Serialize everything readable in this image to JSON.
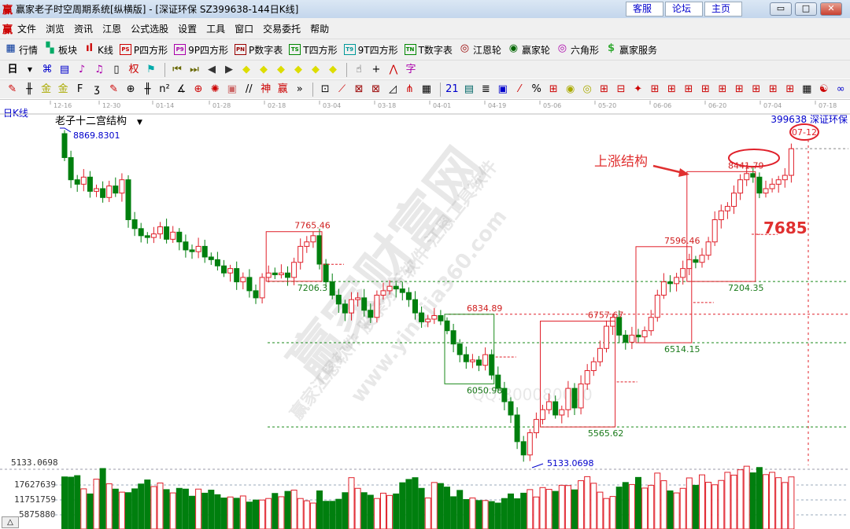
{
  "window": {
    "logo": "赢",
    "title": "赢家老子时空周期系统[纵横版] - [深证环保   SZ399638-144日K线]",
    "links": [
      "客服",
      "论坛",
      "主页"
    ],
    "controls": [
      "minimize",
      "maximize",
      "close"
    ]
  },
  "menu": {
    "logo": "赢",
    "items": [
      "文件",
      "浏览",
      "资讯",
      "江恩",
      "公式选股",
      "设置",
      "工具",
      "窗口",
      "交易委托",
      "帮助"
    ]
  },
  "toolbar1": [
    {
      "icon": "quote-grid-icon",
      "label": "行情",
      "color": "#003399",
      "badge": "▦"
    },
    {
      "icon": "sector-blocks-icon",
      "label": "板块",
      "color": "#0a6",
      "badge": "▚"
    },
    {
      "icon": "kline-icon",
      "label": "K线",
      "color": "#c00",
      "badge": "ıl"
    },
    {
      "icon": "ps-icon",
      "label": "P四方形",
      "color": "#c00",
      "badge": "PS"
    },
    {
      "icon": "p9-icon",
      "label": "9P四方形",
      "color": "#a0a",
      "badge": "P9"
    },
    {
      "icon": "pn-icon",
      "label": "P数字表",
      "color": "#900",
      "badge": "PN"
    },
    {
      "icon": "ts-icon",
      "label": "T四方形",
      "color": "#080",
      "badge": "TS"
    },
    {
      "icon": "t9-icon",
      "label": "9T四方形",
      "color": "#099",
      "badge": "T9"
    },
    {
      "icon": "tn-icon",
      "label": "T数字表",
      "color": "#080",
      "badge": "TN"
    },
    {
      "icon": "gann-wheel-icon",
      "label": "江恩轮",
      "color": "#900",
      "badge": "◎"
    },
    {
      "icon": "yingjia-wheel-icon",
      "label": "赢家轮",
      "color": "#060",
      "badge": "◉"
    },
    {
      "icon": "hexagon-icon",
      "label": "六角形",
      "color": "#a0a",
      "badge": "◎"
    },
    {
      "icon": "dollar-icon",
      "label": "赢家服务",
      "color": "#3a3",
      "badge": "$"
    }
  ],
  "toolbar2": {
    "period": "日",
    "icons": [
      {
        "name": "connect-icon",
        "g": "⌘",
        "c": "#00c"
      },
      {
        "name": "notes-icon",
        "g": "▤",
        "c": "#00c"
      },
      {
        "name": "chart3-icon",
        "g": "♪",
        "c": "#a0a"
      },
      {
        "name": "chart9-icon",
        "g": "♫",
        "c": "#a0a"
      },
      {
        "name": "candle-type-icon",
        "g": "▯",
        "c": "#000"
      },
      {
        "name": "weight-icon",
        "g": "权",
        "c": "#c00"
      },
      {
        "name": "flag-icon",
        "g": "⚑",
        "c": "#0aa"
      },
      {
        "name": "first-icon",
        "g": "⏮",
        "c": "#660"
      },
      {
        "name": "last-icon",
        "g": "⏭",
        "c": "#660"
      },
      {
        "name": "prev-icon",
        "g": "◀",
        "c": "#333"
      },
      {
        "name": "next-icon",
        "g": "▶",
        "c": "#333"
      },
      {
        "name": "shift-left-icon",
        "g": "◆",
        "c": "#dd0"
      },
      {
        "name": "shift-right-icon",
        "g": "◆",
        "c": "#dd0"
      },
      {
        "name": "expand-icon",
        "g": "◆",
        "c": "#dd0"
      },
      {
        "name": "shrink-icon",
        "g": "◆",
        "c": "#dd0"
      },
      {
        "name": "zoom-in-icon",
        "g": "◆",
        "c": "#dd0"
      },
      {
        "name": "zoom-out-icon",
        "g": "◆",
        "c": "#dd0"
      },
      {
        "name": "hand-icon",
        "g": "☝",
        "c": "#333"
      },
      {
        "name": "crosshair-icon",
        "g": "+",
        "c": "#000"
      },
      {
        "name": "line-icon",
        "g": "⋀",
        "c": "#c00"
      },
      {
        "name": "text-icon",
        "g": "字",
        "c": "#a0a"
      }
    ]
  },
  "toolbar3": {
    "icons": [
      {
        "name": "pen-icon",
        "g": "✎",
        "c": "#c00"
      },
      {
        "name": "grid1-icon",
        "g": "╫",
        "c": "#000"
      },
      {
        "name": "gold-icon",
        "g": "金",
        "c": "#aa0"
      },
      {
        "name": "gold2-icon",
        "g": "金",
        "c": "#aa0"
      },
      {
        "name": "fib-icon",
        "g": "F",
        "c": "#000"
      },
      {
        "name": "spiral-icon",
        "g": "ʒ",
        "c": "#000"
      },
      {
        "name": "rocket-icon",
        "g": "✎",
        "c": "#c00"
      },
      {
        "name": "circle-grid-icon",
        "g": "⊕",
        "c": "#000"
      },
      {
        "name": "grid2-icon",
        "g": "╫",
        "c": "#000"
      },
      {
        "name": "n2-icon",
        "g": "n²",
        "c": "#000"
      },
      {
        "name": "angle-icon",
        "g": "∡",
        "c": "#000"
      },
      {
        "name": "target-icon",
        "g": "⊕",
        "c": "#c00"
      },
      {
        "name": "radar-icon",
        "g": "✺",
        "c": "#c00"
      },
      {
        "name": "square-spiral-icon",
        "g": "▣",
        "c": "#c66"
      },
      {
        "name": "parallel-icon",
        "g": "//",
        "c": "#000"
      },
      {
        "name": "shen-icon",
        "g": "神",
        "c": "#c00"
      },
      {
        "name": "ying-icon",
        "g": "赢",
        "c": "#c00"
      },
      {
        "name": "more-icon",
        "g": "»",
        "c": "#000"
      },
      {
        "name": "box-icon",
        "g": "⊡",
        "c": "#000"
      },
      {
        "name": "fan-icon",
        "g": "⟋",
        "c": "#c00"
      },
      {
        "name": "box-fan-icon",
        "g": "⊠",
        "c": "#900"
      },
      {
        "name": "box-fan2-icon",
        "g": "⊠",
        "c": "#900"
      },
      {
        "name": "cycle-icon",
        "g": "◿",
        "c": "#000"
      },
      {
        "name": "pitch-icon",
        "g": "⋔",
        "c": "#c00"
      },
      {
        "name": "grid3-icon",
        "g": "▦",
        "c": "#000"
      },
      {
        "name": "calendar-icon",
        "g": "21",
        "c": "#00c"
      },
      {
        "name": "table-icon",
        "g": "▤",
        "c": "#066"
      },
      {
        "name": "lines-icon",
        "g": "≣",
        "c": "#000"
      },
      {
        "name": "save-icon",
        "g": "▣",
        "c": "#00c"
      },
      {
        "name": "pct-slash-icon",
        "g": "⁄",
        "c": "#c00"
      },
      {
        "name": "percent-icon",
        "g": "%",
        "c": "#000"
      },
      {
        "name": "bars-icon",
        "g": "⊞",
        "c": "#c00"
      },
      {
        "name": "coin-icon",
        "g": "◉",
        "c": "#aa0"
      },
      {
        "name": "coin2-icon",
        "g": "◎",
        "c": "#aa0"
      },
      {
        "name": "up-icon",
        "g": "⊞",
        "c": "#c00"
      },
      {
        "name": "fall-icon",
        "g": "⊟",
        "c": "#c00"
      },
      {
        "name": "star-icon",
        "g": "✦",
        "c": "#c00"
      },
      {
        "name": "a1-icon",
        "g": "⊞",
        "c": "#c00"
      },
      {
        "name": "a2-icon",
        "g": "⊞",
        "c": "#c00"
      },
      {
        "name": "a3-icon",
        "g": "⊞",
        "c": "#c00"
      },
      {
        "name": "a4-icon",
        "g": "⊞",
        "c": "#c00"
      },
      {
        "name": "a5-icon",
        "g": "⊞",
        "c": "#c00"
      },
      {
        "name": "a6-icon",
        "g": "⊞",
        "c": "#c00"
      },
      {
        "name": "a7-icon",
        "g": "⊞",
        "c": "#c00"
      },
      {
        "name": "a8-icon",
        "g": "⊞",
        "c": "#c00"
      },
      {
        "name": "a9-icon",
        "g": "⊞",
        "c": "#c00"
      },
      {
        "name": "layout-icon",
        "g": "▦",
        "c": "#000"
      },
      {
        "name": "yinyang-icon",
        "g": "☯",
        "c": "#c00"
      },
      {
        "name": "infinity-icon",
        "g": "∞",
        "c": "#00c"
      }
    ]
  },
  "chart": {
    "period_label": "日K线",
    "indicator": "老子十二宫结构",
    "security": "399638  深证环保",
    "date_ticks": [
      "12-16",
      "12-30",
      "01-14",
      "01-28",
      "02-18",
      "03-04",
      "03-18",
      "04-01",
      "04-19",
      "05-06",
      "05-20",
      "06-06",
      "06-20",
      "07-04",
      "07-18"
    ],
    "cursor_date": "07-12",
    "high_label": "8869.8301",
    "low_label": "5133.0698",
    "y_top_label": "5133.0698",
    "volume_ticks": [
      "17627639",
      "11751759",
      "5875880"
    ],
    "annotation": "上涨结构",
    "target_label": "7685",
    "colors": {
      "up": "#e0202a",
      "down": "#007f0e",
      "box": "#e0202a",
      "green_box": "#1a8a1a",
      "label_red": "#d02020",
      "label_green": "#1a7a1a"
    },
    "boxes": [
      {
        "from": 32,
        "to": 40,
        "high": "7765.46",
        "low": "7206.3",
        "color": "red"
      },
      {
        "from": 60,
        "to": 67,
        "high": "6834.89",
        "low": "6050.98",
        "color": "green"
      },
      {
        "from": 75,
        "to": 86,
        "high": "6757.67",
        "low": "5565.62",
        "color": "red"
      },
      {
        "from": 90,
        "to": 98,
        "high": "7596.46",
        "low": "6514.15",
        "color": "red"
      },
      {
        "from": 98,
        "to": 108,
        "high": "8441.79",
        "low": "7204.35",
        "color": "red"
      }
    ],
    "closes": [
      8600,
      8350,
      8300,
      8380,
      8220,
      8250,
      8150,
      8280,
      8200,
      8350,
      7900,
      7800,
      7720,
      7700,
      7740,
      7820,
      7680,
      7760,
      7650,
      7560,
      7540,
      7600,
      7480,
      7450,
      7380,
      7300,
      7350,
      7200,
      7250,
      7100,
      7020,
      7250,
      7300,
      7280,
      7300,
      7250,
      7420,
      7600,
      7650,
      7720,
      7400,
      7200,
      7050,
      6950,
      6850,
      7000,
      7020,
      6880,
      6800,
      7050,
      7100,
      7150,
      7120,
      7080,
      7000,
      6850,
      6750,
      6780,
      6820,
      6760,
      6650,
      6500,
      6380,
      6300,
      6320,
      6260,
      6380,
      6150,
      6000,
      5850,
      5700,
      5400,
      5250,
      5500,
      5650,
      5760,
      5850,
      5700,
      5760,
      6000,
      5780,
      6050,
      6200,
      6300,
      6450,
      6700,
      6800,
      6600,
      6520,
      6600,
      6580,
      6650,
      6800,
      7050,
      7200,
      7180,
      7250,
      7350,
      7450,
      7420,
      7500,
      7650,
      7900,
      8000,
      8050,
      8200,
      8350,
      8420,
      8380,
      8200,
      8250,
      8300,
      8350,
      8400,
      8700
    ],
    "first_open": 8869.83,
    "volumes": [
      20500000,
      20400000,
      21000000,
      15800000,
      13800000,
      19600000,
      23800000,
      17800000,
      15700000,
      14500000,
      14300000,
      15800000,
      17700000,
      19300000,
      16700000,
      18100000,
      15500000,
      14200000,
      16000000,
      15700000,
      12900000,
      15700000,
      14100000,
      15300000,
      13500000,
      12200000,
      12600000,
      12100000,
      13000000,
      10600000,
      11400000,
      11400000,
      12000000,
      14000000,
      12700000,
      14800000,
      15300000,
      12000000,
      11100000,
      10200000,
      15000000,
      10900000,
      10900000,
      11700000,
      14300000,
      20200000,
      16000000,
      14300000,
      13300000,
      12000000,
      14100000,
      13200000,
      13800000,
      18200000,
      19500000,
      20200000,
      16000000,
      12200000,
      18300000,
      17900000,
      16500000,
      12700000,
      15200000,
      11600000,
      12200000,
      11200000,
      11200000,
      10800000,
      10200000,
      12000000,
      13800000,
      11900000,
      14100000,
      15500000,
      12600000,
      16300000,
      15600000,
      14800000,
      17200000,
      17100000,
      15400000,
      19000000,
      20600000,
      18000000,
      14500000,
      12000000,
      12800000,
      16500000,
      18300000,
      17500000,
      20300000,
      16100000,
      17200000,
      22000000,
      19000000,
      15000000,
      14200000,
      16000000,
      20100000,
      17200000,
      21300000,
      18400000,
      17400000,
      19100000,
      22300000,
      21200000,
      23300000,
      24700000,
      22100000,
      24200000,
      21400000,
      22300000,
      20200000,
      18300000,
      20500000
    ]
  },
  "watermark": {
    "main": "赢家财富网",
    "line2": "赢家江恩软件 股票分析软件 江恩工具软件",
    "url": "www.yingjia360.com",
    "qq": "QQ:800080000"
  }
}
